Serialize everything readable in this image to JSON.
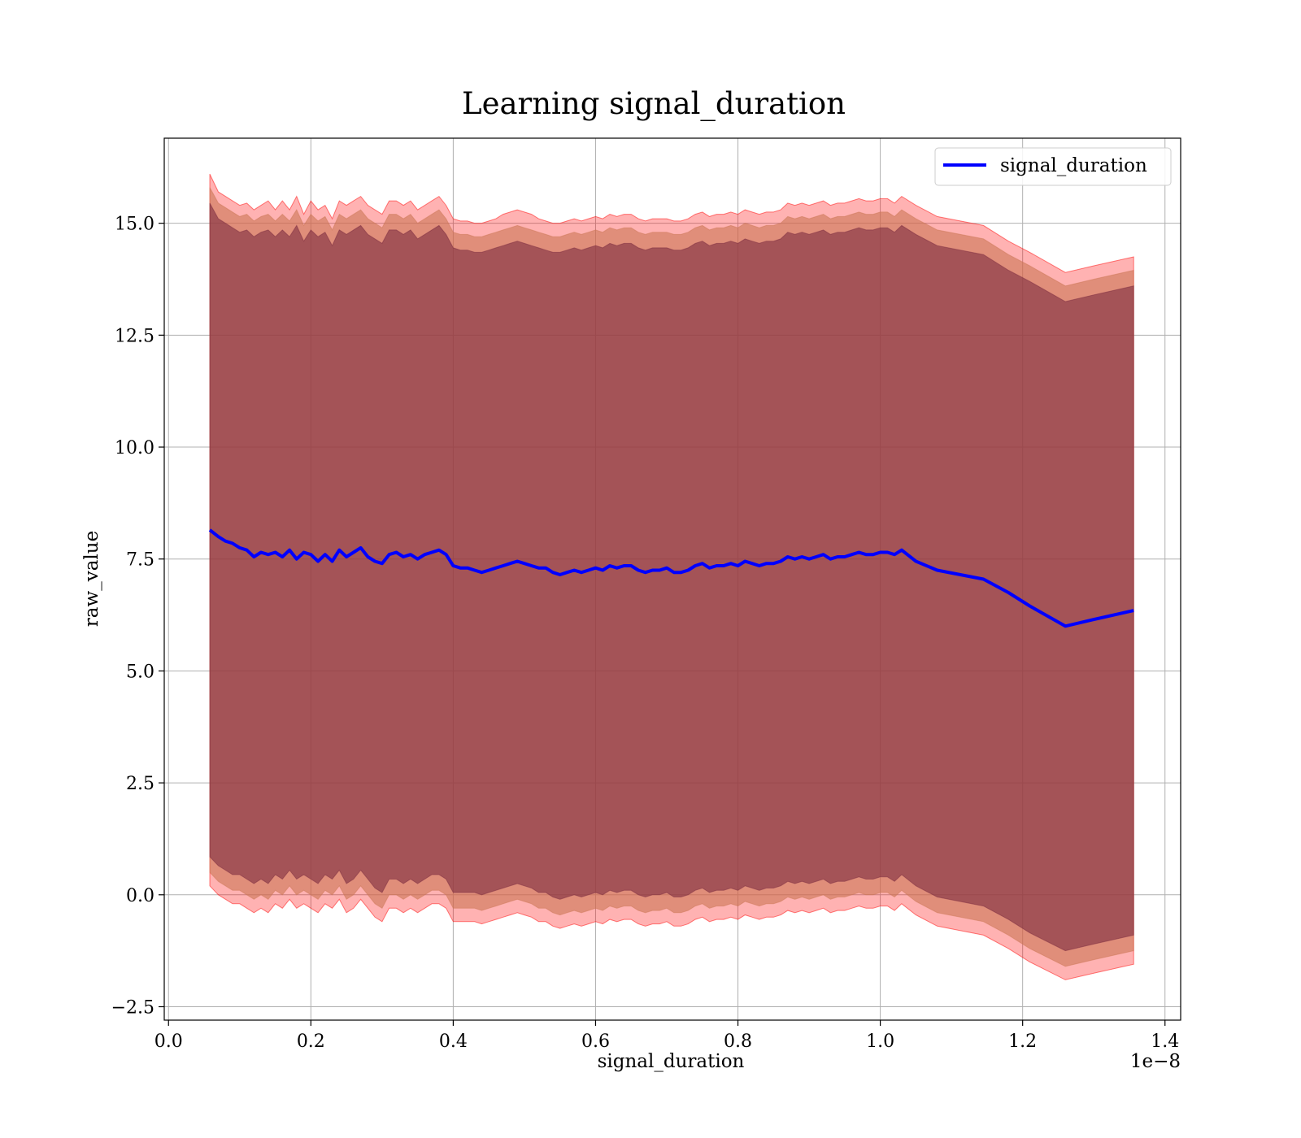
{
  "chart_data": {
    "type": "line",
    "title": "Learning signal_duration",
    "xlabel": "signal_duration",
    "ylabel": "raw_value",
    "x_offset_label": "1e−8",
    "xlim": [
      -0.006,
      1.422
    ],
    "ylim": [
      -2.8,
      16.9
    ],
    "x_ticks": [
      0.0,
      0.2,
      0.4,
      0.6,
      0.8,
      1.0,
      1.2,
      1.4
    ],
    "x_tick_labels": [
      "0.0",
      "0.2",
      "0.4",
      "0.6",
      "0.8",
      "1.0",
      "1.2",
      "1.4"
    ],
    "y_ticks": [
      -2.5,
      0.0,
      2.5,
      5.0,
      7.5,
      10.0,
      12.5,
      15.0
    ],
    "y_tick_labels": [
      "−2.5",
      "0.0",
      "2.5",
      "5.0",
      "7.5",
      "10.0",
      "12.5",
      "15.0"
    ],
    "grid": true,
    "legend": {
      "position": "top-right"
    },
    "series": [
      {
        "name": "signal_duration",
        "color": "#0000ff",
        "x": [
          0.058,
          0.07,
          0.08,
          0.09,
          0.1,
          0.11,
          0.12,
          0.13,
          0.14,
          0.15,
          0.16,
          0.17,
          0.18,
          0.19,
          0.2,
          0.21,
          0.22,
          0.23,
          0.24,
          0.25,
          0.26,
          0.27,
          0.28,
          0.29,
          0.3,
          0.31,
          0.32,
          0.33,
          0.34,
          0.35,
          0.36,
          0.37,
          0.38,
          0.39,
          0.4,
          0.41,
          0.42,
          0.43,
          0.44,
          0.45,
          0.46,
          0.47,
          0.48,
          0.49,
          0.5,
          0.51,
          0.52,
          0.53,
          0.54,
          0.55,
          0.56,
          0.57,
          0.58,
          0.59,
          0.6,
          0.61,
          0.62,
          0.63,
          0.64,
          0.65,
          0.66,
          0.67,
          0.68,
          0.69,
          0.7,
          0.71,
          0.72,
          0.73,
          0.74,
          0.75,
          0.76,
          0.77,
          0.78,
          0.79,
          0.8,
          0.81,
          0.82,
          0.83,
          0.84,
          0.85,
          0.86,
          0.87,
          0.88,
          0.89,
          0.9,
          0.91,
          0.92,
          0.93,
          0.94,
          0.95,
          0.96,
          0.97,
          0.98,
          0.99,
          1.0,
          1.01,
          1.02,
          1.03,
          1.05,
          1.08,
          1.145,
          1.18,
          1.21,
          1.26,
          1.3,
          1.356
        ],
        "y": [
          8.15,
          8.0,
          7.9,
          7.85,
          7.75,
          7.7,
          7.55,
          7.65,
          7.6,
          7.65,
          7.55,
          7.7,
          7.5,
          7.65,
          7.6,
          7.45,
          7.6,
          7.45,
          7.7,
          7.55,
          7.65,
          7.75,
          7.55,
          7.45,
          7.4,
          7.6,
          7.65,
          7.55,
          7.6,
          7.5,
          7.6,
          7.65,
          7.7,
          7.6,
          7.35,
          7.3,
          7.3,
          7.25,
          7.2,
          7.25,
          7.3,
          7.35,
          7.4,
          7.45,
          7.4,
          7.35,
          7.3,
          7.3,
          7.2,
          7.15,
          7.2,
          7.25,
          7.2,
          7.25,
          7.3,
          7.25,
          7.35,
          7.3,
          7.35,
          7.35,
          7.25,
          7.2,
          7.25,
          7.25,
          7.3,
          7.2,
          7.2,
          7.25,
          7.35,
          7.4,
          7.3,
          7.35,
          7.35,
          7.4,
          7.35,
          7.45,
          7.4,
          7.35,
          7.4,
          7.4,
          7.45,
          7.55,
          7.5,
          7.55,
          7.5,
          7.55,
          7.6,
          7.5,
          7.55,
          7.55,
          7.6,
          7.65,
          7.6,
          7.6,
          7.65,
          7.65,
          7.6,
          7.7,
          7.45,
          7.25,
          7.05,
          6.75,
          6.45,
          6.0,
          6.15,
          6.35
        ],
        "bands": [
          {
            "color": "#ff0000",
            "upper": [
              16.1,
              15.7,
              15.6,
              15.5,
              15.4,
              15.45,
              15.3,
              15.4,
              15.5,
              15.3,
              15.5,
              15.3,
              15.6,
              15.2,
              15.5,
              15.3,
              15.4,
              15.1,
              15.5,
              15.4,
              15.5,
              15.6,
              15.4,
              15.3,
              15.2,
              15.5,
              15.5,
              15.4,
              15.5,
              15.3,
              15.4,
              15.5,
              15.6,
              15.4,
              15.1,
              15.05,
              15.05,
              15.0,
              15.0,
              15.05,
              15.1,
              15.2,
              15.25,
              15.3,
              15.25,
              15.2,
              15.1,
              15.05,
              15.0,
              15.0,
              15.05,
              15.1,
              15.05,
              15.1,
              15.15,
              15.1,
              15.2,
              15.15,
              15.2,
              15.2,
              15.1,
              15.05,
              15.1,
              15.1,
              15.1,
              15.05,
              15.05,
              15.1,
              15.2,
              15.25,
              15.15,
              15.2,
              15.2,
              15.25,
              15.2,
              15.3,
              15.25,
              15.2,
              15.25,
              15.25,
              15.3,
              15.45,
              15.4,
              15.45,
              15.4,
              15.45,
              15.5,
              15.4,
              15.45,
              15.45,
              15.5,
              15.55,
              15.5,
              15.5,
              15.55,
              15.55,
              15.45,
              15.6,
              15.4,
              15.15,
              14.95,
              14.6,
              14.35,
              13.9,
              14.05,
              14.25
            ],
            "lower": [
              0.2,
              0.0,
              -0.1,
              -0.2,
              -0.2,
              -0.3,
              -0.4,
              -0.3,
              -0.4,
              -0.2,
              -0.3,
              -0.1,
              -0.3,
              -0.2,
              -0.3,
              -0.4,
              -0.2,
              -0.3,
              -0.1,
              -0.4,
              -0.3,
              -0.1,
              -0.3,
              -0.5,
              -0.6,
              -0.3,
              -0.3,
              -0.4,
              -0.3,
              -0.4,
              -0.3,
              -0.2,
              -0.2,
              -0.3,
              -0.6,
              -0.6,
              -0.6,
              -0.6,
              -0.65,
              -0.6,
              -0.55,
              -0.5,
              -0.45,
              -0.4,
              -0.45,
              -0.5,
              -0.6,
              -0.6,
              -0.7,
              -0.75,
              -0.7,
              -0.65,
              -0.7,
              -0.65,
              -0.6,
              -0.65,
              -0.55,
              -0.6,
              -0.55,
              -0.55,
              -0.65,
              -0.7,
              -0.65,
              -0.65,
              -0.6,
              -0.7,
              -0.7,
              -0.65,
              -0.55,
              -0.5,
              -0.6,
              -0.55,
              -0.55,
              -0.5,
              -0.55,
              -0.45,
              -0.5,
              -0.55,
              -0.5,
              -0.5,
              -0.45,
              -0.35,
              -0.4,
              -0.35,
              -0.4,
              -0.35,
              -0.3,
              -0.4,
              -0.35,
              -0.35,
              -0.3,
              -0.25,
              -0.3,
              -0.3,
              -0.25,
              -0.25,
              -0.35,
              -0.2,
              -0.45,
              -0.7,
              -0.9,
              -1.2,
              -1.5,
              -1.9,
              -1.75,
              -1.55
            ]
          },
          {
            "color": "#cc7755",
            "upper": [
              15.8,
              15.45,
              15.35,
              15.25,
              15.15,
              15.2,
              15.05,
              15.15,
              15.2,
              15.05,
              15.2,
              15.05,
              15.3,
              14.95,
              15.2,
              15.05,
              15.15,
              14.85,
              15.2,
              15.1,
              15.2,
              15.3,
              15.1,
              15.0,
              14.9,
              15.2,
              15.2,
              15.1,
              15.2,
              15.0,
              15.1,
              15.2,
              15.3,
              15.1,
              14.8,
              14.75,
              14.75,
              14.7,
              14.7,
              14.75,
              14.8,
              14.85,
              14.9,
              14.95,
              14.9,
              14.85,
              14.8,
              14.75,
              14.7,
              14.7,
              14.75,
              14.8,
              14.75,
              14.8,
              14.85,
              14.8,
              14.9,
              14.85,
              14.9,
              14.9,
              14.8,
              14.75,
              14.8,
              14.8,
              14.8,
              14.75,
              14.75,
              14.8,
              14.9,
              14.95,
              14.85,
              14.9,
              14.9,
              14.95,
              14.9,
              15.0,
              14.95,
              14.9,
              14.95,
              14.95,
              15.0,
              15.15,
              15.1,
              15.15,
              15.1,
              15.15,
              15.2,
              15.1,
              15.15,
              15.15,
              15.2,
              15.25,
              15.2,
              15.2,
              15.25,
              15.25,
              15.15,
              15.3,
              15.1,
              14.85,
              14.65,
              14.3,
              14.05,
              13.6,
              13.75,
              13.95
            ],
            "lower": [
              0.5,
              0.3,
              0.2,
              0.1,
              0.1,
              0.0,
              -0.1,
              0.0,
              -0.1,
              0.1,
              0.0,
              0.2,
              0.0,
              0.1,
              0.0,
              -0.1,
              0.1,
              0.0,
              0.2,
              -0.1,
              0.0,
              0.2,
              0.0,
              -0.2,
              -0.3,
              0.0,
              0.0,
              -0.1,
              0.0,
              -0.1,
              0.0,
              0.1,
              0.1,
              0.0,
              -0.3,
              -0.3,
              -0.3,
              -0.3,
              -0.35,
              -0.3,
              -0.25,
              -0.2,
              -0.15,
              -0.1,
              -0.15,
              -0.2,
              -0.3,
              -0.3,
              -0.4,
              -0.45,
              -0.4,
              -0.35,
              -0.4,
              -0.35,
              -0.3,
              -0.35,
              -0.25,
              -0.3,
              -0.25,
              -0.25,
              -0.35,
              -0.4,
              -0.35,
              -0.35,
              -0.3,
              -0.4,
              -0.4,
              -0.35,
              -0.25,
              -0.2,
              -0.3,
              -0.25,
              -0.25,
              -0.2,
              -0.25,
              -0.15,
              -0.2,
              -0.25,
              -0.2,
              -0.2,
              -0.15,
              -0.05,
              -0.1,
              -0.05,
              -0.1,
              -0.05,
              0.0,
              -0.1,
              -0.05,
              -0.05,
              0.0,
              0.05,
              0.0,
              0.0,
              0.05,
              0.05,
              -0.05,
              0.1,
              -0.15,
              -0.4,
              -0.6,
              -0.9,
              -1.2,
              -1.6,
              -1.45,
              -1.25
            ]
          },
          {
            "color": "#7b2b3f",
            "upper": [
              15.45,
              15.1,
              15.0,
              14.9,
              14.8,
              14.85,
              14.7,
              14.8,
              14.85,
              14.7,
              14.85,
              14.7,
              14.95,
              14.6,
              14.85,
              14.7,
              14.8,
              14.5,
              14.85,
              14.75,
              14.85,
              14.95,
              14.75,
              14.65,
              14.55,
              14.85,
              14.85,
              14.75,
              14.85,
              14.65,
              14.75,
              14.85,
              14.95,
              14.75,
              14.45,
              14.4,
              14.4,
              14.35,
              14.35,
              14.4,
              14.45,
              14.5,
              14.55,
              14.6,
              14.55,
              14.5,
              14.45,
              14.4,
              14.35,
              14.35,
              14.4,
              14.45,
              14.4,
              14.45,
              14.5,
              14.45,
              14.55,
              14.5,
              14.55,
              14.55,
              14.45,
              14.4,
              14.45,
              14.45,
              14.45,
              14.4,
              14.4,
              14.45,
              14.55,
              14.6,
              14.5,
              14.55,
              14.55,
              14.6,
              14.55,
              14.65,
              14.6,
              14.55,
              14.6,
              14.6,
              14.65,
              14.8,
              14.75,
              14.8,
              14.75,
              14.8,
              14.85,
              14.75,
              14.8,
              14.8,
              14.85,
              14.9,
              14.85,
              14.85,
              14.9,
              14.9,
              14.8,
              14.95,
              14.75,
              14.5,
              14.3,
              13.95,
              13.7,
              13.25,
              13.4,
              13.6
            ],
            "lower": [
              0.85,
              0.65,
              0.55,
              0.45,
              0.45,
              0.35,
              0.25,
              0.35,
              0.25,
              0.45,
              0.35,
              0.55,
              0.35,
              0.45,
              0.35,
              0.25,
              0.45,
              0.35,
              0.55,
              0.25,
              0.35,
              0.55,
              0.35,
              0.15,
              0.05,
              0.35,
              0.35,
              0.25,
              0.35,
              0.25,
              0.35,
              0.45,
              0.45,
              0.35,
              0.05,
              0.05,
              0.05,
              0.05,
              0.0,
              0.05,
              0.1,
              0.15,
              0.2,
              0.25,
              0.2,
              0.15,
              0.05,
              0.05,
              -0.05,
              -0.1,
              -0.05,
              0.0,
              -0.05,
              0.0,
              0.05,
              0.0,
              0.1,
              0.05,
              0.1,
              0.1,
              0.0,
              -0.05,
              0.0,
              0.0,
              0.05,
              -0.05,
              -0.05,
              0.0,
              0.1,
              0.15,
              0.05,
              0.1,
              0.1,
              0.15,
              0.1,
              0.2,
              0.15,
              0.1,
              0.15,
              0.15,
              0.2,
              0.3,
              0.25,
              0.3,
              0.25,
              0.3,
              0.35,
              0.25,
              0.3,
              0.3,
              0.35,
              0.4,
              0.35,
              0.35,
              0.4,
              0.4,
              0.3,
              0.45,
              0.2,
              -0.05,
              -0.25,
              -0.55,
              -0.85,
              -1.25,
              -1.1,
              -0.9
            ]
          }
        ]
      }
    ]
  }
}
